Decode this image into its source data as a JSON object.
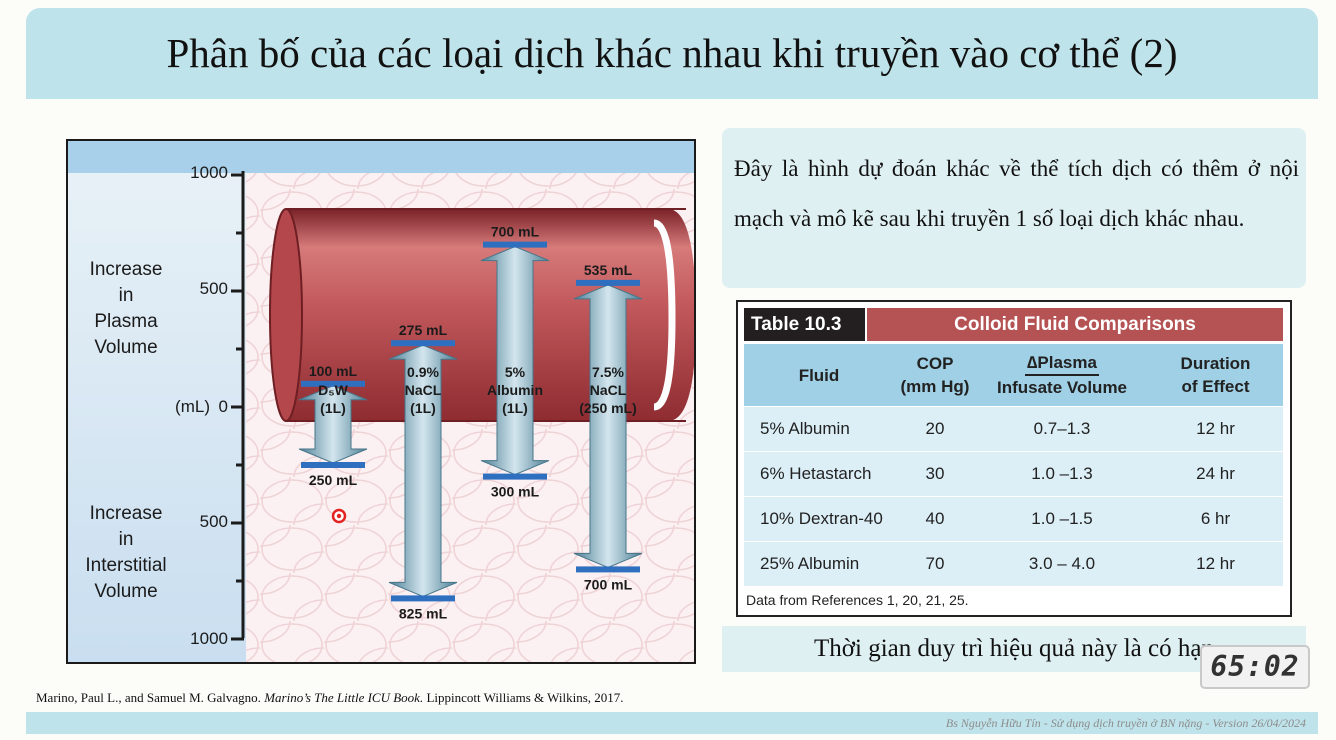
{
  "slide": {
    "title": "Phân bố của các loại dịch khác nhau khi truyền vào cơ thể (2)",
    "description": "Đây là hình dự đoán khác về thể tích dịch có thêm ở nội mạch và mô kẽ sau khi truyền 1 số loại dịch khác nhau.",
    "duration_note": "Thời gian duy trì hiệu quả này là có hạn",
    "timer": "65:02",
    "footer": "Bs Nguyễn Hữu Tín - Sử dụng dịch truyền ở BN nặng - Version 26/04/2024",
    "citation": {
      "authors": "Marino, Paul L., and Samuel M. Galvagno.",
      "book": "Marino’s The Little ICU Book.",
      "publisher": "Lippincott Williams & Wilkins, 2017."
    }
  },
  "figure": {
    "axis": {
      "tick_top": "1000",
      "tick_upper": "500",
      "tick_zero": "0",
      "tick_lower": "500",
      "tick_bottom": "1000",
      "unit": "(mL)",
      "label_plasma": [
        "Increase",
        "in",
        "Plasma",
        "Volume"
      ],
      "label_interstitial": [
        "Increase",
        "in",
        "Interstitial",
        "Volume"
      ]
    },
    "colors": {
      "vessel": "#a83a3e",
      "arrow": "#5b93aa",
      "bar": "#2f6fc0",
      "top_band": "#a9d0ea"
    },
    "fluids": [
      {
        "name": "D₅W",
        "amount": "(1L)",
        "plasma_ml": 100,
        "interstitial_ml": 250,
        "plasma_label": "100 mL",
        "interstitial_label": "250 mL"
      },
      {
        "name": "0.9% NaCL",
        "amount": "(1L)",
        "plasma_ml": 275,
        "interstitial_ml": 825,
        "plasma_label": "275 mL",
        "interstitial_label": "825 mL"
      },
      {
        "name": "5% Albumin",
        "amount": "(1L)",
        "plasma_ml": 700,
        "interstitial_ml": 300,
        "plasma_label": "700 mL",
        "interstitial_label": "300 mL"
      },
      {
        "name": "7.5% NaCL",
        "amount": "(250 mL)",
        "plasma_ml": 535,
        "interstitial_ml": 700,
        "plasma_label": "535 mL",
        "interstitial_label": "700 mL"
      }
    ]
  },
  "table": {
    "number": "Table 10.3",
    "title": "Colloid Fluid Comparisons",
    "headers": {
      "fluid": "Fluid",
      "cop_1": "COP",
      "cop_2": "(mm Hg)",
      "ratio_top": "∆Plasma",
      "ratio_bottom": "Infusate Volume",
      "duration_1": "Duration",
      "duration_2": "of Effect"
    },
    "rows": [
      {
        "fluid": "5% Albumin",
        "cop": "20",
        "ratio": "0.7–1.3",
        "duration": "12 hr"
      },
      {
        "fluid": "6% Hetastarch",
        "cop": "30",
        "ratio": "1.0 –1.3",
        "duration": "24 hr"
      },
      {
        "fluid": "10% Dextran-40",
        "cop": "40",
        "ratio": "1.0 –1.5",
        "duration": "6 hr"
      },
      {
        "fluid": "25% Albumin",
        "cop": "70",
        "ratio": "3.0 – 4.0",
        "duration": "12 hr"
      }
    ],
    "footnote": "Data from References 1, 20, 21, 25."
  }
}
